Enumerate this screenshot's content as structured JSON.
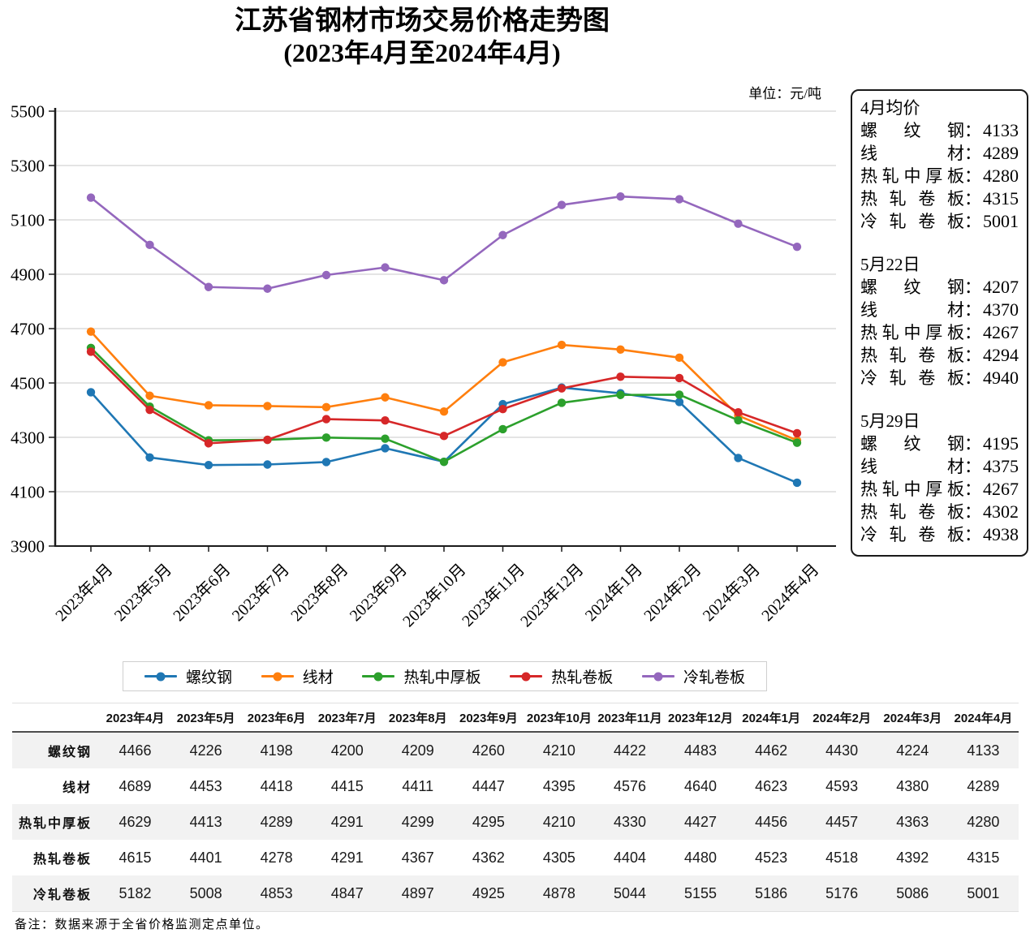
{
  "title": {
    "line1": "江苏省钢材市场交易价格走势图",
    "line2": "(2023年4月至2024年4月)"
  },
  "unit_label": "单位：元/吨",
  "chart_data": {
    "type": "line",
    "title": "江苏省钢材市场交易价格走势图(2023年4月至2024年4月)",
    "xlabel": "",
    "ylabel": "元/吨",
    "ylim": [
      3900,
      5500
    ],
    "ytick_step": 200,
    "grid": true,
    "legend_position": "bottom",
    "x": [
      "2023年4月",
      "2023年5月",
      "2023年6月",
      "2023年7月",
      "2023年8月",
      "2023年9月",
      "2023年10月",
      "2023年11月",
      "2023年12月",
      "2024年1月",
      "2024年2月",
      "2024年3月",
      "2024年4月"
    ],
    "series": [
      {
        "name": "螺纹钢",
        "color": "#1f77b4",
        "values": [
          4466,
          4226,
          4198,
          4200,
          4209,
          4260,
          4210,
          4422,
          4483,
          4462,
          4430,
          4224,
          4133
        ]
      },
      {
        "name": "线材",
        "color": "#ff7f0e",
        "values": [
          4689,
          4453,
          4418,
          4415,
          4411,
          4447,
          4395,
          4576,
          4640,
          4623,
          4593,
          4380,
          4289
        ]
      },
      {
        "name": "热轧中厚板",
        "color": "#2ca02c",
        "values": [
          4629,
          4413,
          4289,
          4291,
          4299,
          4295,
          4210,
          4330,
          4427,
          4456,
          4457,
          4363,
          4280
        ]
      },
      {
        "name": "热轧卷板",
        "color": "#d62728",
        "values": [
          4615,
          4401,
          4278,
          4291,
          4367,
          4362,
          4305,
          4404,
          4480,
          4523,
          4518,
          4392,
          4315
        ]
      },
      {
        "name": "冷轧卷板",
        "color": "#9467bd",
        "values": [
          5182,
          5008,
          4853,
          4847,
          4897,
          4925,
          4878,
          5044,
          5155,
          5186,
          5176,
          5086,
          5001
        ]
      }
    ]
  },
  "side_panel": {
    "colon": "：",
    "sections": [
      {
        "heading": "4月均价",
        "rows": [
          {
            "label": "螺纹钢",
            "value": 4133
          },
          {
            "label": "线材",
            "value": 4289
          },
          {
            "label": "热轧中厚板",
            "value": 4280
          },
          {
            "label": "热轧卷板",
            "value": 4315
          },
          {
            "label": "冷轧卷板",
            "value": 5001
          }
        ]
      },
      {
        "heading": "5月22日",
        "rows": [
          {
            "label": "螺纹钢",
            "value": 4207
          },
          {
            "label": "线材",
            "value": 4370
          },
          {
            "label": "热轧中厚板",
            "value": 4267
          },
          {
            "label": "热轧卷板",
            "value": 4294
          },
          {
            "label": "冷轧卷板",
            "value": 4940
          }
        ]
      },
      {
        "heading": "5月29日",
        "rows": [
          {
            "label": "螺纹钢",
            "value": 4195
          },
          {
            "label": "线材",
            "value": 4375
          },
          {
            "label": "热轧中厚板",
            "value": 4267
          },
          {
            "label": "热轧卷板",
            "value": 4302
          },
          {
            "label": "冷轧卷板",
            "value": 4938
          }
        ]
      }
    ]
  },
  "table": {
    "columns": [
      "2023年4月",
      "2023年5月",
      "2023年6月",
      "2023年7月",
      "2023年8月",
      "2023年9月",
      "2023年10月",
      "2023年11月",
      "2023年12月",
      "2024年1月",
      "2024年2月",
      "2024年3月",
      "2024年4月"
    ],
    "rows": [
      {
        "label": "螺纹钢",
        "values": [
          4466,
          4226,
          4198,
          4200,
          4209,
          4260,
          4210,
          4422,
          4483,
          4462,
          4430,
          4224,
          4133
        ]
      },
      {
        "label": "线材",
        "values": [
          4689,
          4453,
          4418,
          4415,
          4411,
          4447,
          4395,
          4576,
          4640,
          4623,
          4593,
          4380,
          4289
        ]
      },
      {
        "label": "热轧中厚板",
        "values": [
          4629,
          4413,
          4289,
          4291,
          4299,
          4295,
          4210,
          4330,
          4427,
          4456,
          4457,
          4363,
          4280
        ]
      },
      {
        "label": "热轧卷板",
        "values": [
          4615,
          4401,
          4278,
          4291,
          4367,
          4362,
          4305,
          4404,
          4480,
          4523,
          4518,
          4392,
          4315
        ]
      },
      {
        "label": "冷轧卷板",
        "values": [
          5182,
          5008,
          4853,
          4847,
          4897,
          4925,
          4878,
          5044,
          5155,
          5186,
          5176,
          5086,
          5001
        ]
      }
    ]
  },
  "note": "备注：数据来源于全省价格监测定点单位。"
}
